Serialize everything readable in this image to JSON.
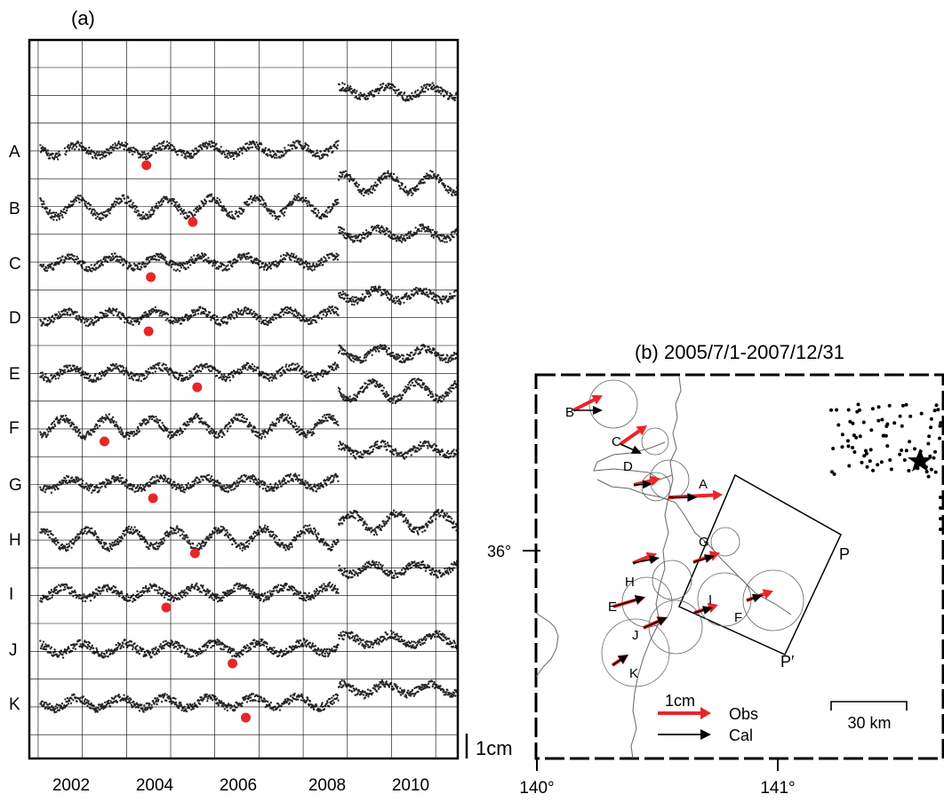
{
  "panel_a": {
    "label": "(a)",
    "scale_label": "1cm",
    "x_ticks": [
      "2002",
      "2004",
      "2006",
      "2008",
      "2010"
    ]
  },
  "panel_b": {
    "title": "(b) 2005/7/1-2007/12/31",
    "lon_ticks": [
      "140°",
      "141°"
    ],
    "lat_tick": "36°",
    "corner_P": "P",
    "corner_P_prime": "P′",
    "legend_obs_scale": "1cm",
    "legend_obs": "Obs",
    "legend_cal": "Cal",
    "scale_bar": "30 km",
    "colors": {
      "obs": "#e8262a",
      "cal": "#000000"
    }
  },
  "chart_data": [
    {
      "type": "scatter",
      "title": "(a)",
      "xlabel": "",
      "ylabel": "",
      "xlim": [
        2001.3,
        2011.0
      ],
      "x_ticks": [
        2002,
        2004,
        2006,
        2008,
        2010
      ],
      "grid": true,
      "unit_scale": "1cm",
      "series": [
        {
          "name": "A",
          "step_2008_cm": 2.3,
          "marker_x": 2003.95
        },
        {
          "name": "B",
          "step_2008_cm": 0.9,
          "marker_x": 2005.0
        },
        {
          "name": "C",
          "step_2008_cm": 1.1,
          "marker_x": 2004.05
        },
        {
          "name": "D",
          "step_2008_cm": 0.8,
          "marker_x": 2004.0
        },
        {
          "name": "E",
          "step_2008_cm": 0.7,
          "marker_x": 2005.1
        },
        {
          "name": "F",
          "step_2008_cm": 1.4,
          "marker_x": 2003.0
        },
        {
          "name": "G",
          "step_2008_cm": 1.3,
          "marker_x": 2004.1
        },
        {
          "name": "H",
          "step_2008_cm": 0.6,
          "marker_x": 2005.05
        },
        {
          "name": "I",
          "step_2008_cm": 0.9,
          "marker_x": 2004.4
        },
        {
          "name": "J",
          "step_2008_cm": 0.3,
          "marker_x": 2005.9
        },
        {
          "name": "K",
          "step_2008_cm": 0.5,
          "marker_x": 2006.2
        }
      ]
    },
    {
      "type": "map",
      "title": "(b) 2005/7/1-2007/12/31",
      "lon_range": [
        140.0,
        141.7
      ],
      "lat_range": [
        35.6,
        36.4
      ],
      "stations": [
        {
          "name": "A",
          "obs": [
            0.85,
            0.05
          ],
          "cal": [
            0.45,
            0.0
          ]
        },
        {
          "name": "B",
          "obs": [
            0.55,
            0.28
          ],
          "cal": [
            0.55,
            0.0
          ]
        },
        {
          "name": "C",
          "obs": [
            0.5,
            0.35
          ],
          "cal": [
            0.4,
            -0.18
          ]
        },
        {
          "name": "D",
          "obs": [
            0.5,
            0.12
          ],
          "cal": [
            0.35,
            0.02
          ]
        },
        {
          "name": "E",
          "obs": [
            0.6,
            0.18
          ],
          "cal": [
            0.6,
            0.18
          ]
        },
        {
          "name": "F",
          "obs": [
            0.5,
            0.18
          ],
          "cal": [
            0.3,
            0.1
          ]
        },
        {
          "name": "G",
          "obs": [
            0.5,
            0.18
          ],
          "cal": [
            0.4,
            0.12
          ]
        },
        {
          "name": "H",
          "obs": [
            0.45,
            0.18
          ],
          "cal": [
            0.5,
            0.1
          ]
        },
        {
          "name": "I",
          "obs": [
            0.45,
            0.15
          ],
          "cal": [
            0.35,
            0.1
          ]
        },
        {
          "name": "J",
          "obs": [
            0.45,
            0.2
          ],
          "cal": [
            0.45,
            0.2
          ]
        },
        {
          "name": "K",
          "obs": [
            0.3,
            0.2
          ],
          "cal": [
            0.3,
            0.2
          ]
        }
      ]
    }
  ]
}
